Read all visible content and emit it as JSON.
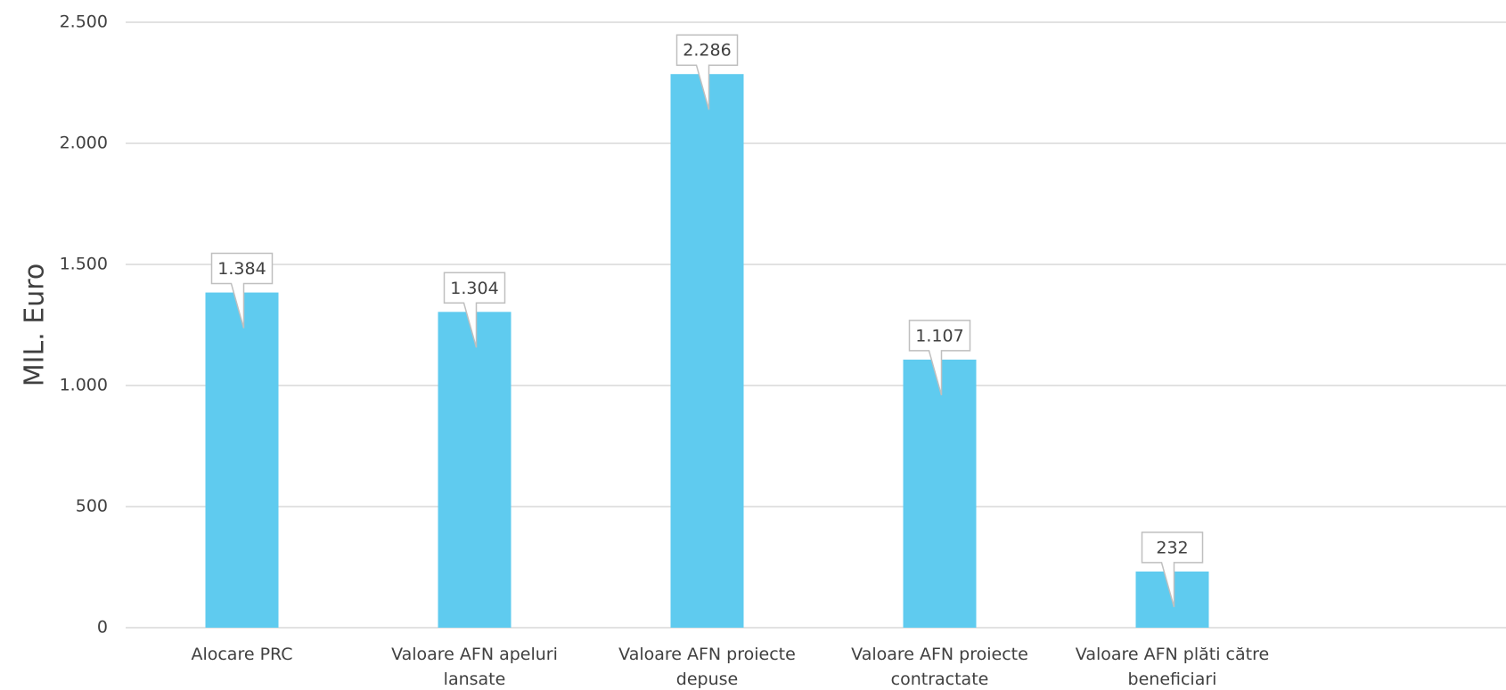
{
  "chart_data": {
    "type": "bar",
    "y_label": "MIL. Euro",
    "categories": [
      "Alocare PRC",
      "Valoare AFN apeluri lansate",
      "Valoare AFN proiecte depuse",
      "Valoare AFN proiecte contractate",
      "Valoare AFN plăti către beneficiari"
    ],
    "values": [
      1384,
      1304,
      2286,
      1107,
      232
    ],
    "value_labels": [
      "1.384",
      "1.304",
      "2.286",
      "1.107",
      "232"
    ],
    "color": "#5fcbef",
    "ylim": [
      0,
      2500
    ],
    "yticks": [
      0,
      500,
      {
        "value": 1000,
        "label": "1.000"
      },
      {
        "value": 1500,
        "label": "1.500"
      },
      {
        "value": 2000,
        "label": "2.000"
      },
      {
        "value": 2500,
        "label": "2.500"
      }
    ],
    "grid": true
  }
}
